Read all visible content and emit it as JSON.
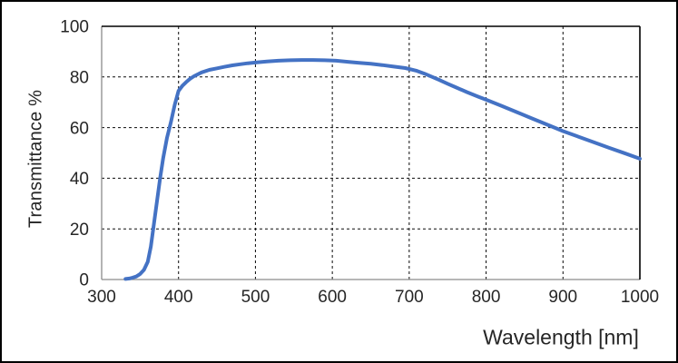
{
  "figure": {
    "background": "#ffffff",
    "outer_border_color": "#000000"
  },
  "chart_data": {
    "type": "line",
    "title": "",
    "xlabel": "Wavelength [nm]",
    "ylabel": "Transmittance %",
    "xlim": [
      300,
      1000
    ],
    "ylim": [
      0,
      100
    ],
    "xticks": [
      300,
      400,
      500,
      600,
      700,
      800,
      900,
      1000
    ],
    "yticks": [
      0,
      20,
      40,
      60,
      80,
      100
    ],
    "x_gridlines": [
      400,
      500,
      600,
      700,
      800,
      900
    ],
    "y_gridlines": [
      20,
      40,
      60,
      80
    ],
    "grid_style": "dashed",
    "legend_position": "none",
    "series": [
      {
        "name": "Transmittance",
        "color": "#4472C4",
        "x": [
          331,
          336,
          340,
          345,
          350,
          355,
          360,
          364,
          368,
          372,
          376,
          380,
          385,
          390,
          395,
          400,
          405,
          410,
          415,
          420,
          430,
          440,
          450,
          460,
          470,
          480,
          490,
          500,
          515,
          530,
          545,
          560,
          575,
          590,
          605,
          620,
          635,
          650,
          665,
          680,
          695,
          710,
          720,
          730,
          740,
          750,
          760,
          775,
          790,
          800,
          820,
          840,
          860,
          880,
          900,
          920,
          940,
          960,
          980,
          1000
        ],
        "y": [
          0.2,
          0.4,
          0.7,
          1.2,
          2.2,
          3.8,
          7,
          13,
          22,
          31,
          40,
          48,
          56,
          62,
          69,
          74.5,
          76.5,
          78,
          79.3,
          80.3,
          81.8,
          82.8,
          83.4,
          84,
          84.6,
          85,
          85.4,
          85.7,
          86.1,
          86.4,
          86.6,
          86.7,
          86.7,
          86.6,
          86.4,
          86,
          85.6,
          85.2,
          84.7,
          84.1,
          83.5,
          82.4,
          81.3,
          80,
          78.7,
          77.3,
          76,
          74,
          72.2,
          71,
          68.6,
          66.1,
          63.6,
          61.1,
          58.6,
          56.4,
          54.2,
          52,
          49.9,
          47.7
        ]
      }
    ],
    "colors": {
      "line": "#4472C4",
      "gridline": "#0a0a0a",
      "axis_line": "#8c8c8c",
      "frame": "#000000",
      "text": "#262626"
    }
  }
}
